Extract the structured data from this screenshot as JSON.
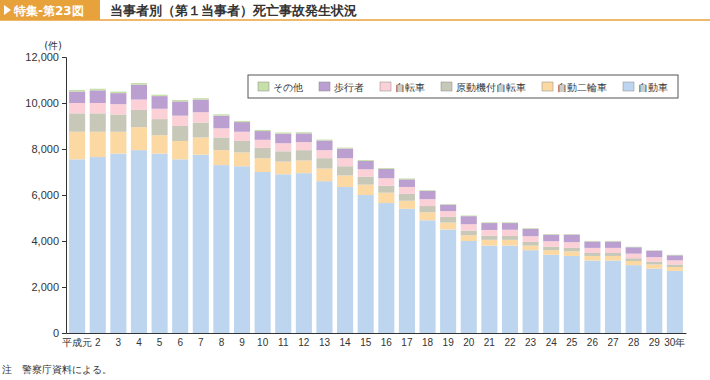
{
  "chart_data": {
    "type": "bar",
    "stacked": true,
    "grid": false,
    "legend": "top-right",
    "title": "当事者別（第１当事者）死亡事故発生状況",
    "annotations": [
      "特集-第23図",
      "注　警察庁資料による。"
    ],
    "y_label": "(件)",
    "categories": [
      "平成元",
      "2",
      "3",
      "4",
      "5",
      "6",
      "7",
      "8",
      "9",
      "10",
      "11",
      "12",
      "13",
      "14",
      "15",
      "16",
      "17",
      "18",
      "19",
      "20",
      "21",
      "22",
      "23",
      "24",
      "25",
      "26",
      "27",
      "28",
      "29",
      "30年"
    ],
    "ylim": [
      0,
      12000
    ],
    "yticks": [
      0,
      {
        "value": 2000,
        "label": "2,000"
      },
      {
        "value": 4000,
        "label": "4,000"
      },
      {
        "value": 6000,
        "label": "6,000"
      },
      {
        "value": 8000,
        "label": "8,000"
      },
      {
        "value": 10000,
        "label": "10,000"
      },
      {
        "value": 12000,
        "label": "12,000"
      }
    ],
    "series": [
      {
        "name": "自動車",
        "color": "#bdd5ee",
        "values": [
          7550,
          7650,
          7800,
          7950,
          7800,
          7550,
          7750,
          7300,
          7250,
          7000,
          6900,
          6950,
          6600,
          6350,
          6000,
          5650,
          5400,
          4900,
          4500,
          4000,
          3800,
          3800,
          3600,
          3400,
          3350,
          3150,
          3150,
          2950,
          2800,
          2700
        ]
      },
      {
        "name": "自動二輪車",
        "color": "#fcd9a2",
        "values": [
          1200,
          1100,
          950,
          1000,
          800,
          800,
          750,
          650,
          600,
          600,
          550,
          550,
          550,
          500,
          450,
          450,
          350,
          350,
          300,
          250,
          250,
          250,
          200,
          200,
          200,
          200,
          200,
          180,
          180,
          170
        ]
      },
      {
        "name": "原動機付自転車",
        "color": "#c7c8b8",
        "values": [
          800,
          800,
          750,
          750,
          700,
          650,
          650,
          550,
          500,
          450,
          450,
          450,
          450,
          400,
          350,
          300,
          300,
          270,
          250,
          200,
          180,
          170,
          160,
          150,
          150,
          130,
          130,
          120,
          120,
          110
        ]
      },
      {
        "name": "自転車",
        "color": "#fbd0d6",
        "values": [
          450,
          450,
          450,
          450,
          450,
          450,
          450,
          400,
          400,
          350,
          350,
          350,
          350,
          350,
          320,
          330,
          300,
          300,
          250,
          280,
          250,
          270,
          250,
          240,
          250,
          220,
          220,
          200,
          200,
          180
        ]
      },
      {
        "name": "歩行者",
        "color": "#bb9fd1",
        "values": [
          500,
          550,
          480,
          650,
          550,
          620,
          550,
          550,
          420,
          380,
          420,
          380,
          420,
          420,
          360,
          400,
          330,
          360,
          280,
          350,
          300,
          290,
          320,
          290,
          330,
          280,
          280,
          280,
          280,
          220
        ]
      },
      {
        "name": "その他",
        "color": "#c7e0a9",
        "values": [
          70,
          70,
          70,
          70,
          60,
          60,
          60,
          60,
          50,
          50,
          50,
          50,
          40,
          40,
          40,
          40,
          40,
          30,
          30,
          30,
          30,
          30,
          30,
          25,
          25,
          25,
          25,
          20,
          20,
          20
        ]
      }
    ]
  }
}
